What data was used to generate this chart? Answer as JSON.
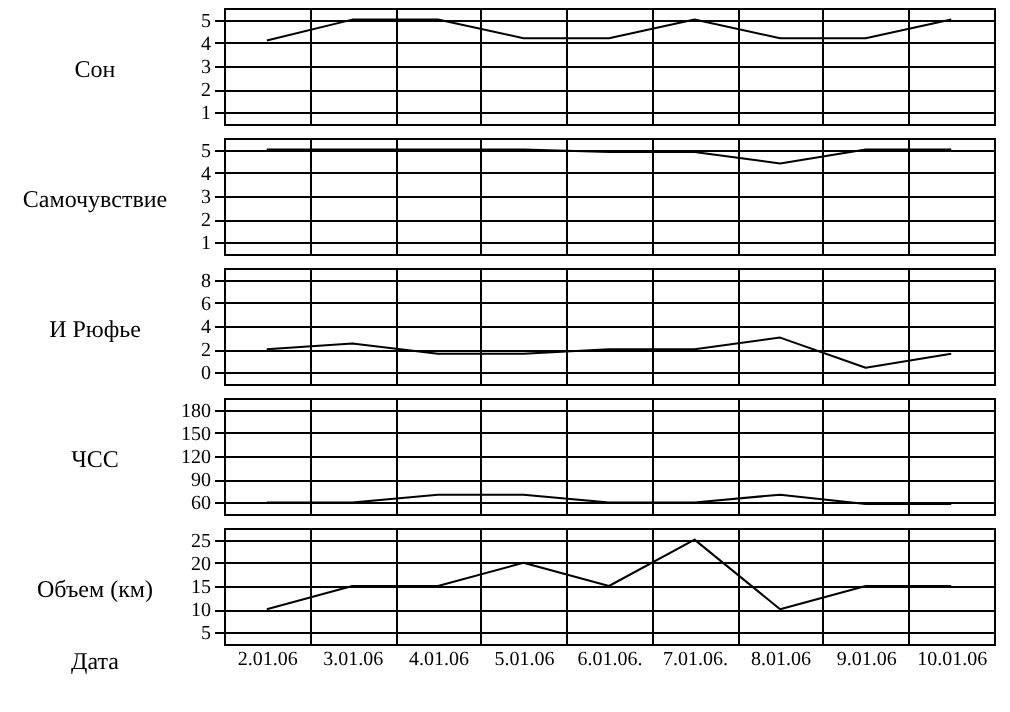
{
  "chart_data": [
    {
      "type": "line",
      "ylabel": "Сон",
      "categories": [
        "2.01.06",
        "3.01.06",
        "4.01.06",
        "5.01.06",
        "6.01.06.",
        "7.01.06.",
        "8.01.06",
        "9.01.06",
        "10.01.06"
      ],
      "values": [
        4.1,
        5,
        5,
        4.2,
        4.2,
        5,
        4.2,
        4.2,
        5
      ],
      "color": "#000000",
      "ylim": [
        0.5,
        5.5
      ],
      "yticks": [
        1,
        2,
        3,
        4,
        5
      ],
      "grid": true,
      "tick_labels": "y"
    },
    {
      "type": "line",
      "ylabel": "Самочувствие",
      "categories": [
        "2.01.06",
        "3.01.06",
        "4.01.06",
        "5.01.06",
        "6.01.06.",
        "7.01.06.",
        "8.01.06",
        "9.01.06",
        "10.01.06"
      ],
      "values": [
        5,
        5,
        5,
        5,
        4.9,
        4.9,
        4.4,
        5,
        5
      ],
      "color": "#000000",
      "ylim": [
        0.5,
        5.5
      ],
      "yticks": [
        1,
        2,
        3,
        4,
        5
      ],
      "grid": true,
      "tick_labels": "y"
    },
    {
      "type": "line",
      "ylabel": "И Рюфье",
      "categories": [
        "2.01.06",
        "3.01.06",
        "4.01.06",
        "5.01.06",
        "6.01.06.",
        "7.01.06.",
        "8.01.06",
        "9.01.06",
        "10.01.06"
      ],
      "values": [
        2,
        2.5,
        1.6,
        1.6,
        2,
        2,
        3,
        0.4,
        1.6
      ],
      "color": "#000000",
      "ylim": [
        -1,
        9
      ],
      "yticks": [
        0,
        2,
        4,
        6,
        8
      ],
      "grid": true,
      "tick_labels": "y"
    },
    {
      "type": "line",
      "ylabel": "ЧСС",
      "categories": [
        "2.01.06",
        "3.01.06",
        "4.01.06",
        "5.01.06",
        "6.01.06.",
        "7.01.06.",
        "8.01.06",
        "9.01.06",
        "10.01.06"
      ],
      "values": [
        60,
        60,
        70,
        70,
        60,
        60,
        70,
        58,
        58
      ],
      "color": "#000000",
      "ylim": [
        45,
        195
      ],
      "yticks": [
        60,
        90,
        120,
        150,
        180
      ],
      "grid": true,
      "tick_labels": "y"
    },
    {
      "type": "line",
      "ylabel": "Объем (км)",
      "xlabel": "Дата",
      "categories": [
        "2.01.06",
        "3.01.06",
        "4.01.06",
        "5.01.06",
        "6.01.06.",
        "7.01.06.",
        "8.01.06",
        "9.01.06",
        "10.01.06"
      ],
      "values": [
        10,
        15,
        15,
        20,
        15,
        25,
        10,
        15,
        15
      ],
      "color": "#000000",
      "ylim": [
        2.5,
        27.5
      ],
      "yticks": [
        5,
        10,
        15,
        20,
        25
      ],
      "grid": true
    }
  ]
}
